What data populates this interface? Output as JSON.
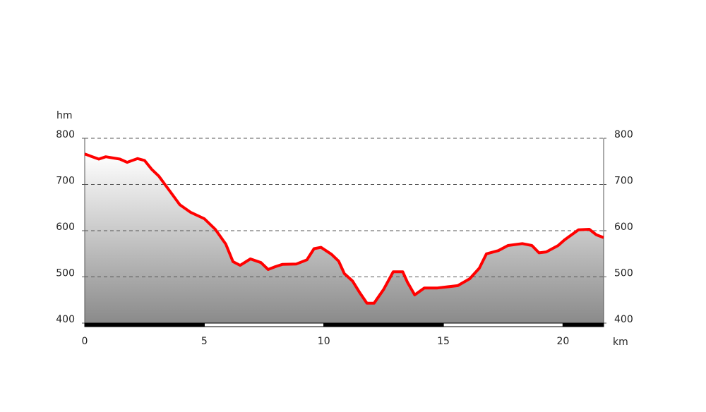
{
  "chart_data": {
    "type": "area",
    "y_label": "hm",
    "x_label": "km",
    "x": [
      0,
      0.59,
      0.88,
      1.47,
      1.77,
      2.21,
      2.5,
      2.8,
      3.1,
      3.54,
      3.98,
      4.42,
      5.0,
      5.46,
      5.9,
      6.2,
      6.5,
      6.93,
      7.37,
      7.67,
      7.96,
      8.26,
      8.85,
      9.29,
      9.59,
      9.88,
      10.32,
      10.62,
      10.86,
      11.2,
      11.5,
      11.8,
      12.1,
      12.5,
      12.9,
      13.3,
      13.5,
      13.8,
      14.2,
      14.75,
      15.6,
      16.1,
      16.5,
      16.8,
      17.3,
      17.7,
      18.3,
      18.7,
      19.0,
      19.3,
      19.8,
      20.06,
      20.65,
      21.1,
      21.4,
      21.7
    ],
    "values": [
      766,
      755,
      760,
      755,
      748,
      756,
      752,
      733,
      718,
      687,
      656,
      640,
      626,
      603,
      571,
      533,
      525,
      539,
      531,
      516,
      522,
      527,
      528,
      537,
      561,
      564,
      549,
      534,
      507,
      491,
      466,
      443,
      443,
      473,
      511,
      511,
      488,
      461,
      476,
      476,
      481,
      496,
      519,
      550,
      557,
      568,
      572,
      568,
      552,
      554,
      568,
      580,
      602,
      603,
      591,
      585
    ],
    "color": "#ff0000",
    "xlim": [
      0,
      21.7
    ],
    "xticks": [
      0,
      5,
      10,
      15,
      20
    ],
    "ylim": [
      400,
      800
    ],
    "yticks": [
      400,
      500,
      600,
      700,
      800
    ],
    "grid": true
  }
}
